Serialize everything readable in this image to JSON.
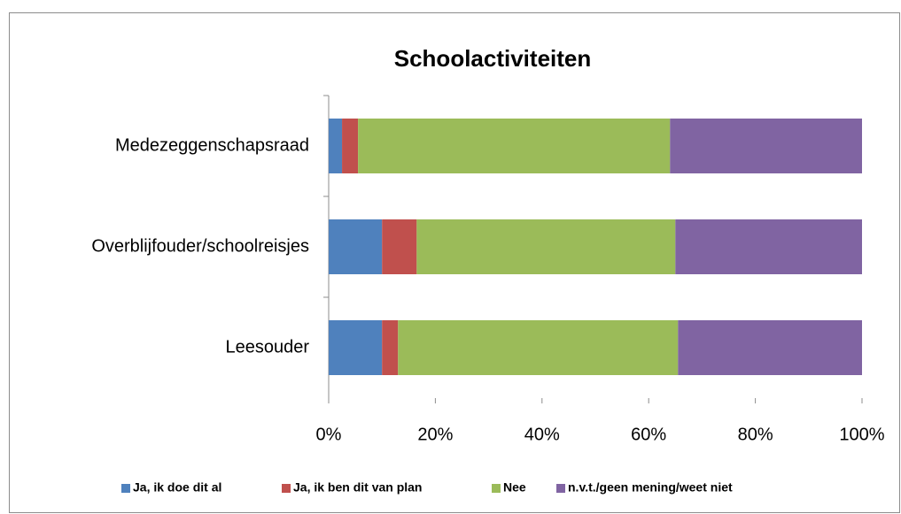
{
  "chart_data": {
    "type": "stacked_barh",
    "title": "Schoolactiviteiten",
    "categories": [
      "Medezeggenschapsraad",
      "Overblijfouder/schoolreisjes",
      "Leesouder"
    ],
    "series": [
      {
        "name": "Ja, ik doe dit al",
        "color": "#4f81bd",
        "values": [
          2.5,
          10,
          10
        ]
      },
      {
        "name": "Ja, ik ben dit van plan",
        "color": "#c0504d",
        "values": [
          3,
          6.5,
          3
        ]
      },
      {
        "name": "Nee",
        "color": "#9bbb59",
        "values": [
          58.5,
          48.5,
          52.5
        ]
      },
      {
        "name": "n.v.t./geen mening/weet niet",
        "color": "#8064a2",
        "values": [
          36,
          35,
          34.5
        ]
      }
    ],
    "xlim": [
      0,
      100
    ],
    "xticks": [
      {
        "value": 0,
        "label": "0%"
      },
      {
        "value": 20,
        "label": "20%"
      },
      {
        "value": 40,
        "label": "40%"
      },
      {
        "value": 60,
        "label": "60%"
      },
      {
        "value": 80,
        "label": "80%"
      },
      {
        "value": 100,
        "label": "100%"
      }
    ],
    "grid": false,
    "legend": "bottom"
  }
}
